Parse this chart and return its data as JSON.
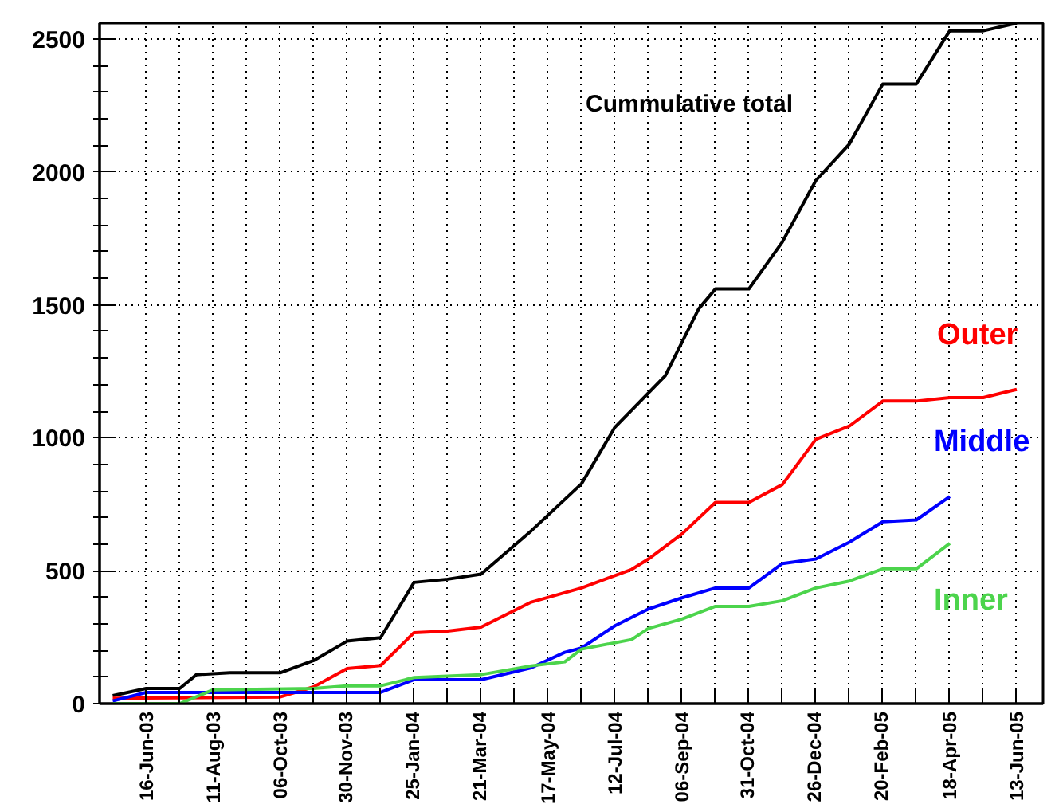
{
  "chart_data": {
    "type": "line",
    "xlim": [
      "2003-05-08",
      "2005-07-05"
    ],
    "ylim": [
      0,
      2560
    ],
    "xticks": [
      {
        "value": "2003-06-16",
        "label": "16-Jun-03"
      },
      {
        "value": "2003-07-14",
        "label": null
      },
      {
        "value": "2003-08-11",
        "label": "11-Aug-03"
      },
      {
        "value": "2003-09-08",
        "label": null
      },
      {
        "value": "2003-10-06",
        "label": "06-Oct-03"
      },
      {
        "value": "2003-11-02",
        "label": null
      },
      {
        "value": "2003-11-30",
        "label": "30-Nov-03"
      },
      {
        "value": "2003-12-28",
        "label": null
      },
      {
        "value": "2004-01-25",
        "label": "25-Jan-04"
      },
      {
        "value": "2004-02-22",
        "label": null
      },
      {
        "value": "2004-03-21",
        "label": "21-Mar-04"
      },
      {
        "value": "2004-04-18",
        "label": null
      },
      {
        "value": "2004-05-17",
        "label": "17-May-04"
      },
      {
        "value": "2004-06-14",
        "label": null
      },
      {
        "value": "2004-07-12",
        "label": "12-Jul-04"
      },
      {
        "value": "2004-08-09",
        "label": null
      },
      {
        "value": "2004-09-06",
        "label": "06-Sep-04"
      },
      {
        "value": "2004-10-04",
        "label": null
      },
      {
        "value": "2004-10-31",
        "label": "31-Oct-04"
      },
      {
        "value": "2004-11-28",
        "label": null
      },
      {
        "value": "2004-12-26",
        "label": "26-Dec-04"
      },
      {
        "value": "2005-01-23",
        "label": null
      },
      {
        "value": "2005-02-20",
        "label": "20-Feb-05"
      },
      {
        "value": "2005-03-20",
        "label": null
      },
      {
        "value": "2005-04-18",
        "label": "18-Apr-05"
      },
      {
        "value": "2005-05-16",
        "label": null
      },
      {
        "value": "2005-06-13",
        "label": "13-Jun-05"
      }
    ],
    "yticks": [
      0,
      500,
      1000,
      1500,
      2000,
      2500
    ],
    "grid": true,
    "legend": false,
    "marker": "none",
    "line_style": "solid",
    "series": [
      {
        "name": "Cummulative total",
        "color": "#000000",
        "x": [
          "2003-05-19",
          "2003-06-16",
          "2003-07-14",
          "2003-07-28",
          "2003-08-25",
          "2003-10-06",
          "2003-11-03",
          "2003-12-01",
          "2003-12-29",
          "2004-01-26",
          "2004-02-23",
          "2004-03-22",
          "2004-05-03",
          "2004-06-14",
          "2004-07-12",
          "2004-08-23",
          "2004-09-20",
          "2004-10-04",
          "2004-11-01",
          "2004-11-29",
          "2004-12-27",
          "2005-01-24",
          "2005-02-21",
          "2005-03-21",
          "2005-04-18",
          "2005-05-16",
          "2005-06-13"
        ],
        "values": [
          30,
          57,
          57,
          109,
          116,
          116,
          162,
          235,
          248,
          456,
          468,
          487,
          650,
          827,
          1040,
          1233,
          1485,
          1560,
          1560,
          1737,
          1968,
          2105,
          2331,
          2331,
          2531,
          2531,
          2560
        ]
      },
      {
        "name": "Outer",
        "color": "#ff0000",
        "x": [
          "2003-05-19",
          "2003-10-06",
          "2003-11-03",
          "2003-12-01",
          "2003-12-29",
          "2004-01-26",
          "2004-02-23",
          "2004-03-22",
          "2004-05-03",
          "2004-06-14",
          "2004-07-26",
          "2004-08-09",
          "2004-09-06",
          "2004-10-04",
          "2004-11-01",
          "2004-11-29",
          "2004-12-27",
          "2005-01-24",
          "2005-02-21",
          "2005-03-21",
          "2005-04-18",
          "2005-05-16",
          "2005-06-13"
        ],
        "values": [
          20,
          25,
          63,
          132,
          143,
          267,
          273,
          288,
          382,
          435,
          505,
          544,
          638,
          757,
          757,
          824,
          994,
          1044,
          1138,
          1138,
          1151,
          1151,
          1182
        ]
      },
      {
        "name": "Middle",
        "color": "#0000ff",
        "x": [
          "2003-05-19",
          "2003-06-16",
          "2003-12-29",
          "2004-01-26",
          "2004-03-22",
          "2004-05-03",
          "2004-05-31",
          "2004-06-14",
          "2004-07-12",
          "2004-08-09",
          "2004-09-06",
          "2004-10-04",
          "2004-11-01",
          "2004-11-29",
          "2004-12-27",
          "2005-01-24",
          "2005-02-21",
          "2005-03-21",
          "2005-04-18"
        ],
        "values": [
          10,
          42,
          42,
          90,
          90,
          135,
          193,
          209,
          293,
          356,
          398,
          435,
          435,
          527,
          544,
          607,
          684,
          691,
          779
        ]
      },
      {
        "name": "Inner",
        "color": "#4cd44c",
        "x": [
          "2003-05-19",
          "2003-07-14",
          "2003-08-11",
          "2003-11-03",
          "2003-12-01",
          "2003-12-29",
          "2004-01-26",
          "2004-03-22",
          "2004-05-03",
          "2004-05-31",
          "2004-06-14",
          "2004-07-26",
          "2004-08-09",
          "2004-09-06",
          "2004-10-04",
          "2004-11-01",
          "2004-11-29",
          "2004-12-27",
          "2005-01-24",
          "2005-02-21",
          "2005-03-21",
          "2005-04-18"
        ],
        "values": [
          0,
          0,
          52,
          57,
          67,
          67,
          98,
          109,
          142,
          157,
          205,
          241,
          283,
          318,
          366,
          366,
          387,
          435,
          461,
          507,
          507,
          603
        ]
      }
    ]
  }
}
